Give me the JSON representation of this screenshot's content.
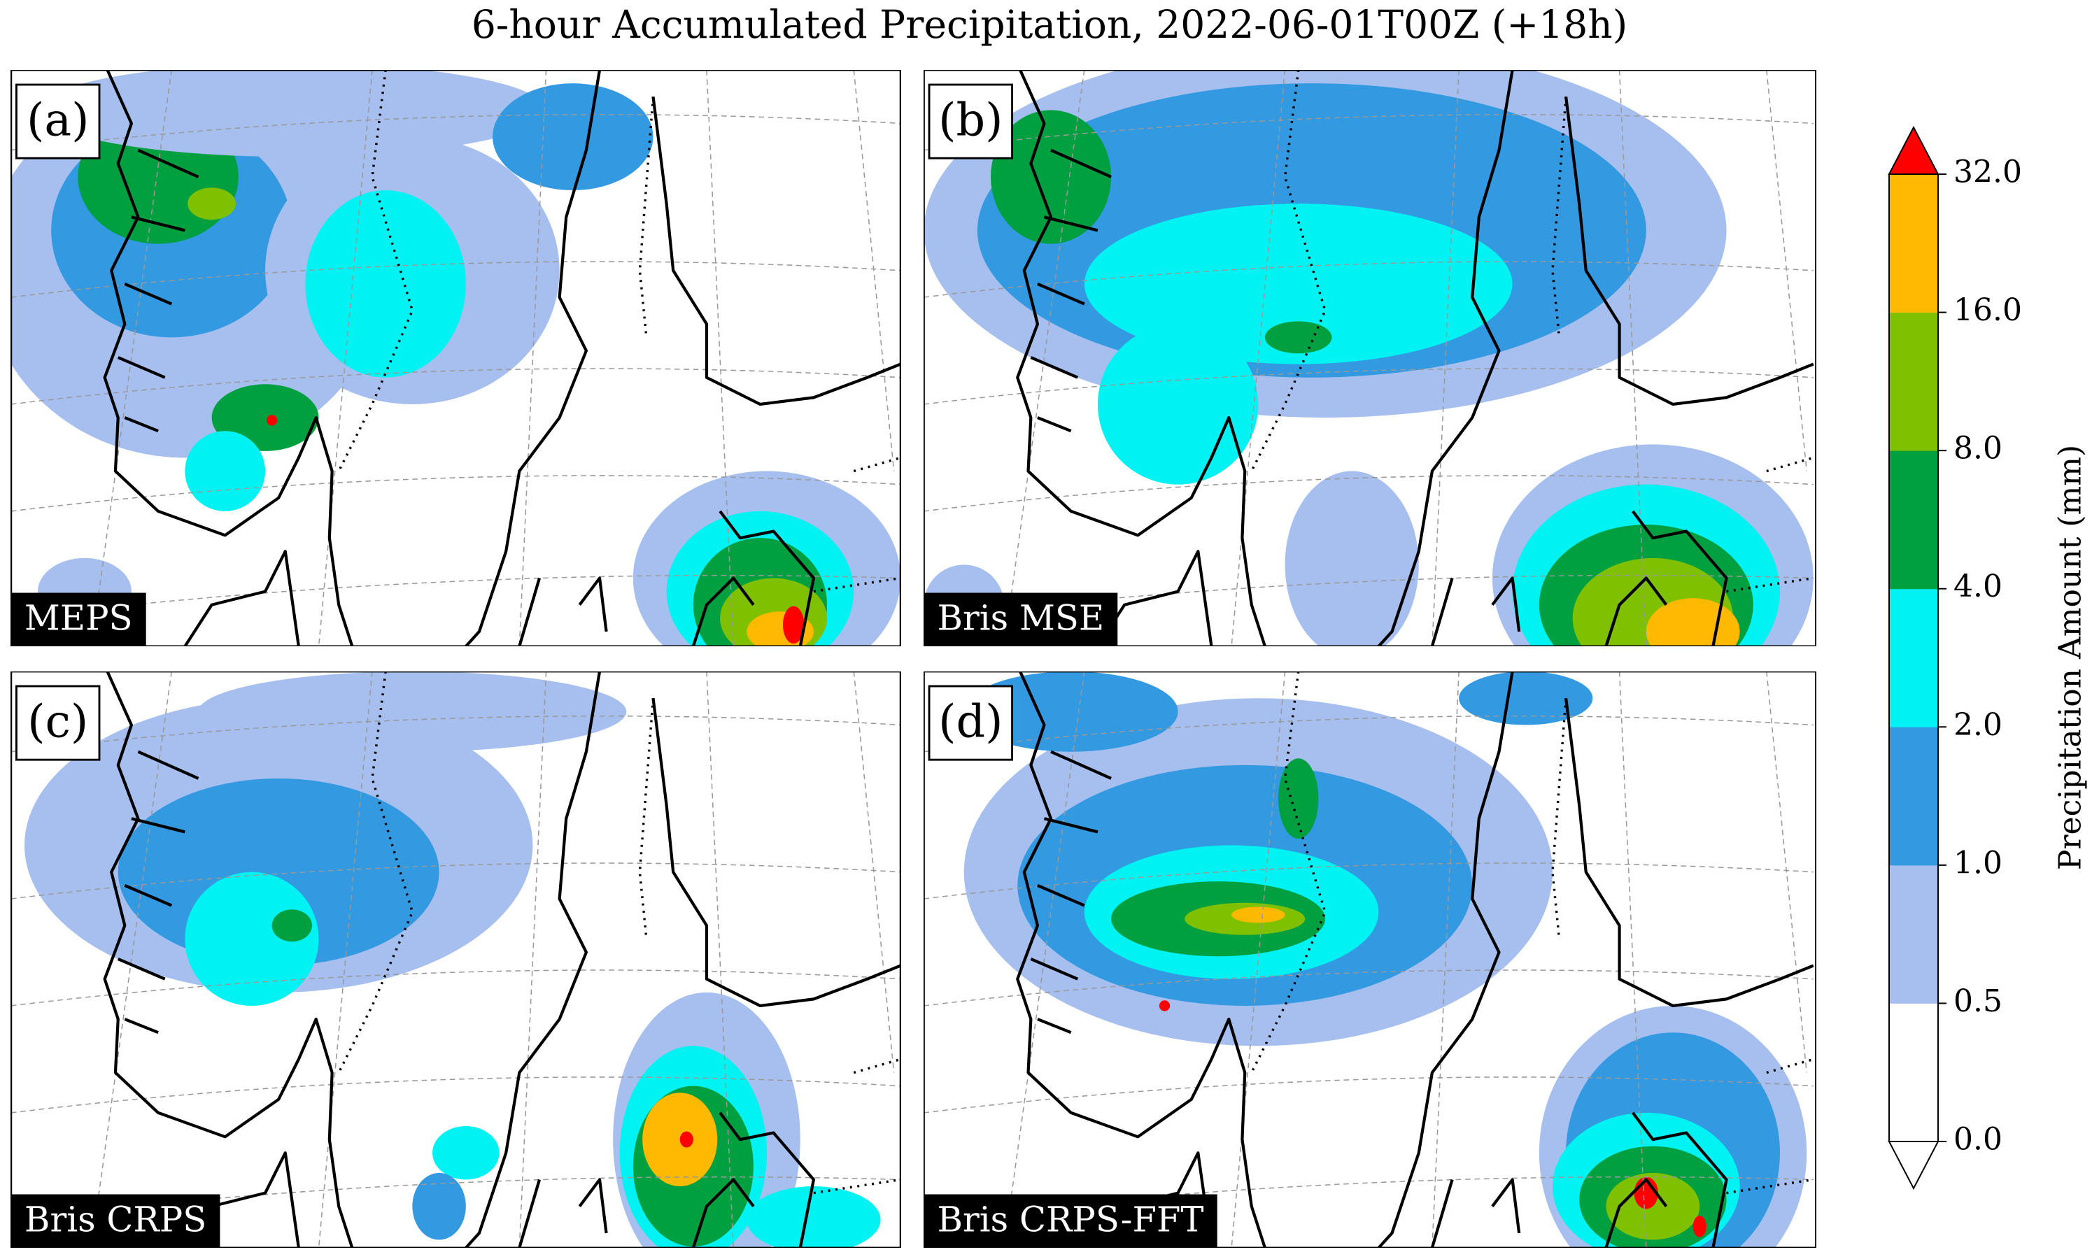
{
  "title": "6-hour Accumulated Precipitation, 2022-06-01T00Z (+18h)",
  "panels": [
    {
      "label": "(a)",
      "model": "MEPS"
    },
    {
      "label": "(b)",
      "model": "Bris MSE"
    },
    {
      "label": "(c)",
      "model": "Bris CRPS"
    },
    {
      "label": "(d)",
      "model": "Bris CRPS-FFT"
    }
  ],
  "colorbar": {
    "label": "Precipitation Amount (mm)",
    "ticks": [
      "0.0",
      "0.5",
      "1.0",
      "2.0",
      "4.0",
      "8.0",
      "16.0",
      "32.0"
    ],
    "colors": [
      "#ffffff",
      "#a6bfee",
      "#3399e0",
      "#00f2f2",
      "#00a040",
      "#7fc000",
      "#ffb900"
    ],
    "over_color": "#ff0000",
    "under_color": "#ffffff"
  }
}
